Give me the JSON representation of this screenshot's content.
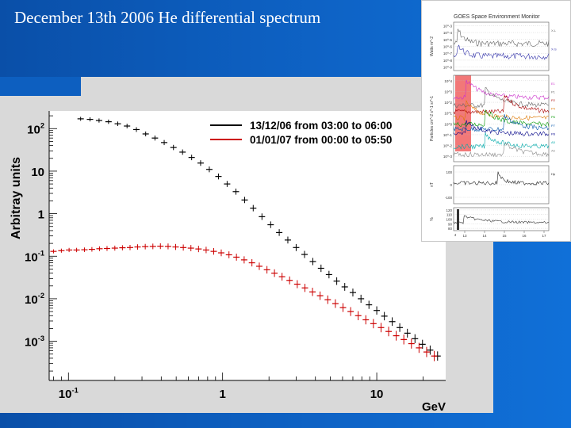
{
  "slide": {
    "title": "December 13th  2006 He differential spectrum",
    "colors": {
      "background_blue": "#0d5fc0",
      "plot_gray": "#d9d9d9",
      "title_text": "#ffffff"
    }
  },
  "chart_data": [
    {
      "type": "scatter",
      "title": "",
      "xlabel": "GeV",
      "ylabel": "Arbitray units",
      "xscale": "log",
      "yscale": "log",
      "xlim": [
        0.075,
        28
      ],
      "ylim": [
        0.00012,
        260
      ],
      "x_ticks": [
        {
          "value": 0.1,
          "label": "10",
          "exp": "-1"
        },
        {
          "value": 1,
          "label": "1",
          "exp": ""
        },
        {
          "value": 10,
          "label": "10",
          "exp": ""
        }
      ],
      "y_ticks": [
        {
          "value": 100,
          "label": "10",
          "exp": "2"
        },
        {
          "value": 10,
          "label": "10",
          "exp": ""
        },
        {
          "value": 1,
          "label": "1",
          "exp": ""
        },
        {
          "value": 0.1,
          "label": "10",
          "exp": "-1"
        },
        {
          "value": 0.01,
          "label": "10",
          "exp": "-2"
        },
        {
          "value": 0.001,
          "label": "10",
          "exp": "-3"
        }
      ],
      "legend_position": "top-right",
      "series": [
        {
          "name": "13/12/06 from 03:00 to 06:00",
          "color": "#000000",
          "x": [
            0.12,
            0.138,
            0.158,
            0.182,
            0.209,
            0.24,
            0.276,
            0.317,
            0.364,
            0.418,
            0.48,
            0.55,
            0.63,
            0.72,
            0.82,
            0.94,
            1.07,
            1.22,
            1.39,
            1.58,
            1.8,
            2.05,
            2.33,
            2.65,
            3.0,
            3.4,
            3.85,
            4.35,
            4.9,
            5.5,
            6.2,
            7.0,
            7.9,
            8.9,
            10.0,
            11.2,
            12.6,
            14.1,
            15.8,
            17.7,
            19.8,
            22.2,
            24.8
          ],
          "values": [
            170,
            165,
            155,
            145,
            130,
            115,
            95,
            75,
            60,
            47,
            36,
            28,
            21,
            15.5,
            11,
            7.5,
            5.0,
            3.3,
            2.1,
            1.35,
            0.85,
            0.55,
            0.36,
            0.24,
            0.16,
            0.11,
            0.075,
            0.052,
            0.037,
            0.026,
            0.019,
            0.014,
            0.01,
            0.0072,
            0.0053,
            0.0039,
            0.0029,
            0.0021,
            0.00155,
            0.00115,
            0.00085,
            0.00062,
            0.00045
          ]
        },
        {
          "name": "01/01/07 from 00:00 to 05:50",
          "color": "#cc0000",
          "x": [
            0.08,
            0.09,
            0.101,
            0.113,
            0.127,
            0.142,
            0.159,
            0.178,
            0.2,
            0.224,
            0.251,
            0.281,
            0.315,
            0.353,
            0.395,
            0.443,
            0.496,
            0.556,
            0.623,
            0.698,
            0.782,
            0.876,
            0.98,
            1.1,
            1.23,
            1.38,
            1.55,
            1.73,
            1.94,
            2.17,
            2.43,
            2.72,
            3.05,
            3.42,
            3.83,
            4.29,
            4.81,
            5.39,
            6.04,
            6.77,
            7.58,
            8.49,
            9.51,
            10.66,
            11.94,
            13.37,
            14.98,
            16.78,
            18.8,
            21.06,
            23.6
          ],
          "values": [
            0.13,
            0.135,
            0.14,
            0.14,
            0.142,
            0.145,
            0.15,
            0.152,
            0.155,
            0.158,
            0.16,
            0.165,
            0.168,
            0.17,
            0.172,
            0.17,
            0.165,
            0.16,
            0.155,
            0.148,
            0.14,
            0.13,
            0.12,
            0.108,
            0.095,
            0.082,
            0.07,
            0.058,
            0.048,
            0.04,
            0.033,
            0.027,
            0.022,
            0.018,
            0.0145,
            0.0118,
            0.0095,
            0.0077,
            0.0062,
            0.005,
            0.004,
            0.0032,
            0.0026,
            0.0021,
            0.0017,
            0.00135,
            0.0011,
            0.00088,
            0.0007,
            0.00056,
            0.00045
          ]
        }
      ]
    },
    {
      "type": "line",
      "title": "GOES Space Environment Monitor",
      "xlabel": "",
      "x_ticks": [
        "13",
        "14",
        "15",
        "16",
        "17"
      ],
      "x_start_label": "4",
      "panels": [
        {
          "ylabel": "Watts m^-2",
          "y_ticks": [
            "10^-3",
            "10^-4",
            "10^-5",
            "10^-6",
            "10^-7",
            "10^-8",
            "10^-9"
          ],
          "series_labels": [
            "X-L",
            "X-S"
          ],
          "series_colors": [
            "#666666",
            "#3333aa"
          ]
        },
        {
          "ylabel": "Particles cm^-2 s^-1 sr^-1",
          "y_ticks": [
            "10^4",
            "10^3",
            "10^2",
            "10^1",
            "10^0",
            "10^-1",
            "10^-2",
            "10^-3"
          ],
          "series_labels": [
            "E1",
            "P1",
            "P2",
            "P4",
            "P6",
            "P7",
            "P8",
            "A5",
            "A6"
          ],
          "series_colors": [
            "#cc33cc",
            "#666666",
            "#aa0000",
            "#dd7700",
            "#009900",
            "#0055aa",
            "#000088",
            "#00aaaa",
            "#888888"
          ],
          "highlight_color": "#f06060"
        },
        {
          "ylabel": "nT",
          "y_ticks": [
            "100",
            "0",
            "-100"
          ],
          "series_labels": [
            "Hp"
          ],
          "series_colors": [
            "#222222"
          ]
        },
        {
          "ylabel": "%",
          "y_ticks": [
            "120",
            "110",
            "100",
            "90",
            "80"
          ],
          "series_labels": [],
          "series_colors": [
            "#333333"
          ]
        }
      ]
    }
  ]
}
